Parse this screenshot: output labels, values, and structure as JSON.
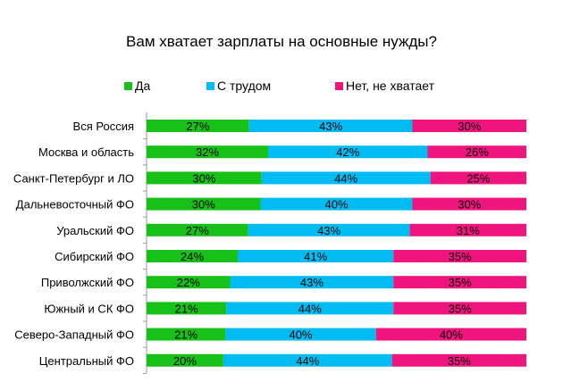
{
  "chart_data": {
    "type": "bar",
    "orientation": "horizontal",
    "stacked": true,
    "percent_stacked": true,
    "title": "Вам хватает зарплаты на основные нужды?",
    "xlabel": "",
    "ylabel": "",
    "legend_position": "top",
    "grid": false,
    "categories": [
      "Вся Россия",
      "Москва и область",
      "Санкт-Петербург и ЛО",
      "Дальневосточный ФО",
      "Уральский ФО",
      "Сибирский ФО",
      "Приволжский ФО",
      "Южный и СК ФО",
      "Северо-Западный ФО",
      "Центральный ФО"
    ],
    "series": [
      {
        "name": "Да",
        "color": "#17c117",
        "values": [
          27,
          32,
          30,
          30,
          27,
          24,
          22,
          21,
          21,
          20
        ],
        "labels": [
          "27%",
          "32%",
          "30%",
          "30%",
          "27%",
          "24%",
          "22%",
          "21%",
          "21%",
          "20%"
        ]
      },
      {
        "name": "С трудом",
        "color": "#00bcf2",
        "values": [
          43,
          42,
          44,
          40,
          43,
          41,
          43,
          44,
          40,
          44
        ],
        "labels": [
          "43%",
          "42%",
          "44%",
          "40%",
          "43%",
          "41%",
          "43%",
          "44%",
          "40%",
          "44%"
        ]
      },
      {
        "name": "Нет, не хватает",
        "color": "#f0157e",
        "values": [
          30,
          26,
          25,
          30,
          31,
          35,
          35,
          35,
          40,
          35
        ],
        "labels": [
          "30%",
          "26%",
          "25%",
          "30%",
          "31%",
          "35%",
          "35%",
          "35%",
          "40%",
          "35%"
        ]
      }
    ]
  }
}
